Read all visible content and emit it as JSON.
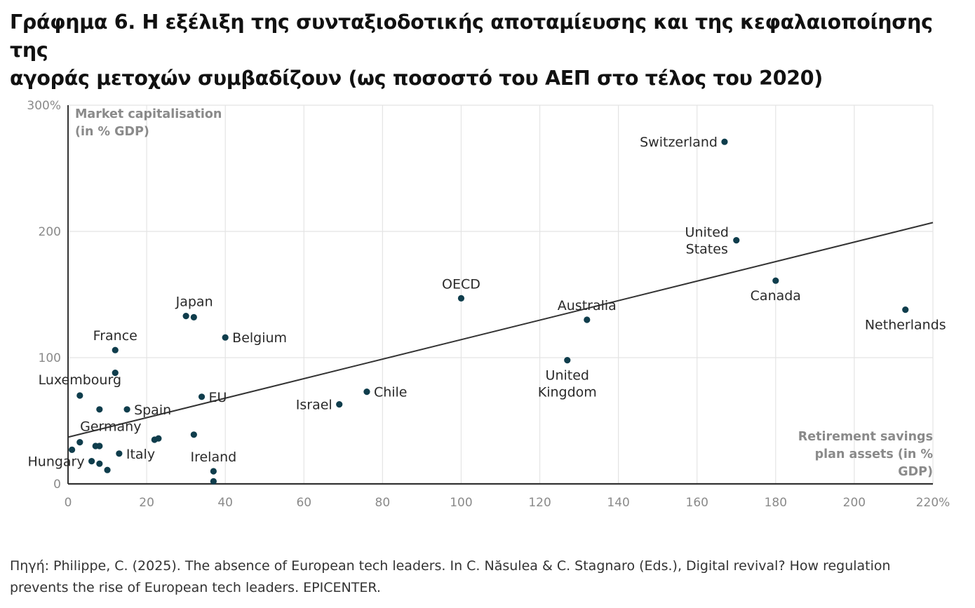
{
  "title": {
    "line1": "Γράφημα 6. Η εξέλιξη της συνταξιοδοτικής αποταμίευσης και της κεφαλαιοποίησης της",
    "line2": "αγοράς μετοχών συμβαδίζουν (ως ποσοστό του ΑΕΠ στο τέλος του 2020)"
  },
  "source": {
    "line1": "Πηγή: Philippe, C. (2025). The absence of European tech leaders. In C. Năsulea & C. Stagnaro (Eds.), Digital revival? How regulation",
    "line2": "prevents the rise of European tech leaders. EPICENTER."
  },
  "colors": {
    "point": "#0f3d4c",
    "trend": "#333333",
    "grid": "#e4e4e4",
    "axis": "#333333",
    "tick": "#8a8a8a",
    "label": "#2a2a2a",
    "axis_title": "#8a8a8a"
  },
  "chart_data": {
    "type": "scatter",
    "xlabel_lines": [
      "Retirement savings",
      "plan assets (in %",
      "GDP)"
    ],
    "ylabel_lines": [
      "Market capitalisation",
      "(in % GDP)"
    ],
    "xlim": [
      0,
      220
    ],
    "ylim": [
      0,
      300
    ],
    "x_ticks": [
      {
        "value": 0,
        "label": "0"
      },
      {
        "value": 20,
        "label": "20"
      },
      {
        "value": 40,
        "label": "40"
      },
      {
        "value": 60,
        "label": "60"
      },
      {
        "value": 80,
        "label": "80"
      },
      {
        "value": 100,
        "label": "100"
      },
      {
        "value": 120,
        "label": "120"
      },
      {
        "value": 140,
        "label": "140"
      },
      {
        "value": 160,
        "label": "160"
      },
      {
        "value": 180,
        "label": "180"
      },
      {
        "value": 200,
        "label": "200"
      },
      {
        "value": 220,
        "label": "220%"
      }
    ],
    "y_ticks": [
      {
        "value": 0,
        "label": "0"
      },
      {
        "value": 100,
        "label": "100"
      },
      {
        "value": 200,
        "label": "200"
      },
      {
        "value": 300,
        "label": "300%"
      }
    ],
    "grid": true,
    "trendline": {
      "x": [
        0,
        220
      ],
      "y": [
        37,
        207
      ]
    },
    "labeled_points": [
      {
        "label_lines": [
          "Switzerland"
        ],
        "x": 167,
        "y": 271,
        "pos": "left"
      },
      {
        "label_lines": [
          "United",
          "States"
        ],
        "x": 170,
        "y": 193,
        "pos": "left-center"
      },
      {
        "label_lines": [
          "Canada"
        ],
        "x": 180,
        "y": 161,
        "pos": "below"
      },
      {
        "label_lines": [
          "Netherlands"
        ],
        "x": 213,
        "y": 138,
        "pos": "below"
      },
      {
        "label_lines": [
          "OECD"
        ],
        "x": 100,
        "y": 147,
        "pos": "above"
      },
      {
        "label_lines": [
          "Australia"
        ],
        "x": 132,
        "y": 130,
        "pos": "above"
      },
      {
        "label_lines": [
          "United",
          "Kingdom"
        ],
        "x": 127,
        "y": 98,
        "pos": "below"
      },
      {
        "label_lines": [
          "Chile"
        ],
        "x": 76,
        "y": 73,
        "pos": "right"
      },
      {
        "label_lines": [
          "Israel"
        ],
        "x": 69,
        "y": 63,
        "pos": "left"
      },
      {
        "label_lines": [
          "Belgium"
        ],
        "x": 40,
        "y": 116,
        "pos": "right"
      },
      {
        "label_lines": [
          "Japan"
        ],
        "x": 30,
        "y": 133,
        "pos": "above-right"
      },
      {
        "label_lines": [
          "EU"
        ],
        "x": 34,
        "y": 69,
        "pos": "right"
      },
      {
        "label_lines": [
          "France"
        ],
        "x": 12,
        "y": 106,
        "pos": "above"
      },
      {
        "label_lines": [
          "Luxembourg"
        ],
        "x": 3,
        "y": 70,
        "pos": "above-right"
      },
      {
        "label_lines": [
          "Spain"
        ],
        "x": 15,
        "y": 59,
        "pos": "right"
      },
      {
        "label_lines": [
          "Germany"
        ],
        "x": 3,
        "y": 33,
        "pos": "above-right"
      },
      {
        "label_lines": [
          "Italy"
        ],
        "x": 13,
        "y": 24,
        "pos": "right"
      },
      {
        "label_lines": [
          "Hungary"
        ],
        "x": 6,
        "y": 18,
        "pos": "left"
      },
      {
        "label_lines": [
          "Ireland"
        ],
        "x": 37,
        "y": 10,
        "pos": "above"
      }
    ],
    "points": [
      {
        "x": 32,
        "y": 132
      },
      {
        "x": 12,
        "y": 88
      },
      {
        "x": 8,
        "y": 59
      },
      {
        "x": 7,
        "y": 30
      },
      {
        "x": 8,
        "y": 30
      },
      {
        "x": 8,
        "y": 16
      },
      {
        "x": 10,
        "y": 11
      },
      {
        "x": 1,
        "y": 27
      },
      {
        "x": 22,
        "y": 35
      },
      {
        "x": 23,
        "y": 36
      },
      {
        "x": 32,
        "y": 39
      },
      {
        "x": 37,
        "y": 2
      }
    ]
  }
}
